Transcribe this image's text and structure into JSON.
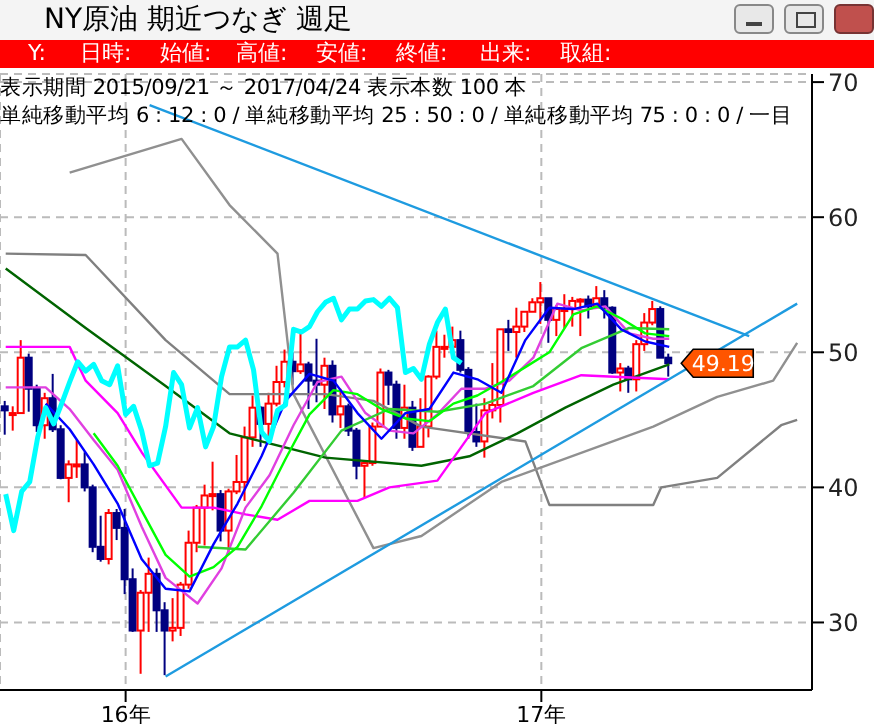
{
  "chart_data": {
    "type": "candlestick",
    "title": "NY原油 期近つなぎ 週足",
    "annotations": [
      "Y:",
      "日時:",
      "始値:",
      "高値:",
      "安値:",
      "終値:",
      "出来:",
      "取組:",
      "表示期間 2015/09/21 ～ 2017/04/24 表示本数 100 本",
      "単純移動平均 6 : 12 : 0 / 単純移動平均 25 : 50 : 0 / 単純移動平均 75 : 0 : 0 / 一目",
      {
        "text": "49.19",
        "x": "2017-04-24",
        "y": 49.19
      }
    ],
    "x": [
      "2015-09-21",
      "2015-09-28",
      "2015-10-05",
      "2015-10-12",
      "2015-10-19",
      "2015-10-26",
      "2015-11-02",
      "2015-11-09",
      "2015-11-16",
      "2015-11-23",
      "2015-11-30",
      "2015-12-07",
      "2015-12-14",
      "2015-12-21",
      "2015-12-28",
      "2016-01-04",
      "2016-01-11",
      "2016-01-18",
      "2016-01-25",
      "2016-02-01",
      "2016-02-08",
      "2016-02-15",
      "2016-02-22",
      "2016-02-29",
      "2016-03-07",
      "2016-03-14",
      "2016-03-21",
      "2016-03-28",
      "2016-04-04",
      "2016-04-11",
      "2016-04-18",
      "2016-04-25",
      "2016-05-02",
      "2016-05-09",
      "2016-05-16",
      "2016-05-23",
      "2016-05-30",
      "2016-06-06",
      "2016-06-13",
      "2016-06-20",
      "2016-06-27",
      "2016-07-04",
      "2016-07-11",
      "2016-07-18",
      "2016-07-25",
      "2016-08-01",
      "2016-08-08",
      "2016-08-15",
      "2016-08-22",
      "2016-08-29",
      "2016-09-05",
      "2016-09-12",
      "2016-09-19",
      "2016-09-26",
      "2016-10-03",
      "2016-10-10",
      "2016-10-17",
      "2016-10-24",
      "2016-10-31",
      "2016-11-07",
      "2016-11-14",
      "2016-11-21",
      "2016-11-28",
      "2016-12-05",
      "2016-12-12",
      "2016-12-19",
      "2016-12-26",
      "2017-01-02",
      "2017-01-09",
      "2017-01-16",
      "2017-01-23",
      "2017-01-30",
      "2017-02-06",
      "2017-02-13",
      "2017-02-20",
      "2017-02-27",
      "2017-03-06",
      "2017-03-13",
      "2017-03-20",
      "2017-03-27",
      "2017-04-03",
      "2017-04-10",
      "2017-04-17",
      "2017-04-24"
    ],
    "ohlc": [
      [
        46.0,
        46.4,
        43.9,
        45.7
      ],
      [
        45.5,
        46.0,
        44.2,
        45.5
      ],
      [
        45.5,
        50.9,
        45.5,
        49.6
      ],
      [
        49.6,
        49.9,
        45.6,
        47.3
      ],
      [
        47.3,
        47.6,
        44.1,
        44.6
      ],
      [
        44.6,
        47.0,
        43.6,
        46.6
      ],
      [
        46.6,
        48.4,
        44.1,
        44.3
      ],
      [
        44.3,
        44.6,
        40.6,
        40.7
      ],
      [
        40.7,
        42.0,
        38.9,
        41.7
      ],
      [
        41.7,
        43.5,
        40.7,
        41.7
      ],
      [
        41.7,
        42.6,
        39.7,
        40.0
      ],
      [
        40.0,
        40.2,
        35.2,
        35.6
      ],
      [
        35.6,
        37.9,
        34.5,
        34.7
      ],
      [
        34.7,
        38.4,
        34.3,
        38.1
      ],
      [
        38.1,
        38.4,
        36.1,
        37.0
      ],
      [
        37.0,
        38.4,
        32.1,
        33.2
      ],
      [
        33.2,
        34.0,
        29.3,
        29.4
      ],
      [
        29.4,
        32.4,
        26.2,
        32.2
      ],
      [
        32.2,
        34.8,
        29.3,
        33.6
      ],
      [
        33.6,
        34.0,
        29.3,
        30.9
      ],
      [
        30.9,
        31.5,
        26.1,
        29.4
      ],
      [
        29.4,
        31.8,
        28.6,
        29.6
      ],
      [
        29.6,
        33.0,
        29.0,
        32.8
      ],
      [
        32.8,
        36.8,
        32.5,
        35.9
      ],
      [
        35.9,
        38.7,
        35.2,
        38.5
      ],
      [
        38.5,
        40.2,
        35.7,
        39.4
      ],
      [
        39.4,
        41.9,
        38.3,
        39.5
      ],
      [
        39.5,
        39.8,
        36.0,
        36.8
      ],
      [
        36.8,
        39.9,
        35.2,
        39.7
      ],
      [
        39.7,
        42.4,
        39.5,
        40.4
      ],
      [
        40.4,
        44.5,
        39.0,
        43.7
      ],
      [
        43.7,
        46.8,
        43.0,
        45.9
      ],
      [
        45.9,
        46.0,
        43.0,
        44.7
      ],
      [
        44.7,
        47.0,
        43.5,
        46.2
      ],
      [
        46.2,
        49.0,
        46.0,
        47.8
      ],
      [
        47.8,
        50.2,
        47.4,
        49.3
      ],
      [
        49.3,
        50.0,
        47.6,
        48.6
      ],
      [
        48.6,
        51.7,
        48.4,
        49.1
      ],
      [
        49.1,
        49.3,
        45.8,
        47.9
      ],
      [
        47.9,
        51.0,
        46.3,
        47.6
      ],
      [
        47.6,
        49.6,
        45.8,
        49.0
      ],
      [
        49.0,
        49.4,
        44.8,
        45.4
      ],
      [
        45.4,
        47.3,
        44.4,
        46.0
      ],
      [
        46.0,
        46.2,
        43.8,
        44.2
      ],
      [
        44.2,
        44.4,
        40.6,
        41.6
      ],
      [
        41.6,
        42.0,
        39.2,
        41.8
      ],
      [
        41.8,
        44.8,
        41.6,
        44.5
      ],
      [
        44.5,
        48.8,
        44.5,
        48.5
      ],
      [
        48.5,
        48.7,
        46.1,
        47.6
      ],
      [
        47.6,
        47.9,
        43.6,
        44.4
      ],
      [
        44.4,
        47.6,
        43.6,
        45.9
      ],
      [
        45.9,
        46.4,
        42.7,
        43.0
      ],
      [
        43.0,
        46.6,
        43.0,
        44.5
      ],
      [
        44.5,
        48.3,
        43.7,
        48.2
      ],
      [
        48.2,
        51.6,
        48.0,
        50.4
      ],
      [
        50.4,
        51.3,
        49.6,
        50.4
      ],
      [
        50.4,
        51.9,
        49.9,
        50.9
      ],
      [
        50.9,
        51.6,
        48.5,
        48.7
      ],
      [
        48.7,
        48.9,
        43.6,
        44.1
      ],
      [
        44.1,
        46.2,
        43.0,
        43.4
      ],
      [
        43.4,
        46.6,
        42.2,
        45.7
      ],
      [
        45.7,
        49.2,
        45.1,
        46.1
      ],
      [
        46.1,
        51.7,
        44.8,
        51.7
      ],
      [
        51.7,
        52.4,
        50.1,
        51.5
      ],
      [
        51.5,
        53.3,
        49.6,
        51.9
      ],
      [
        51.9,
        53.0,
        51.5,
        53.0
      ],
      [
        53.0,
        54.0,
        53.0,
        53.7
      ],
      [
        53.7,
        55.2,
        52.1,
        54.0
      ],
      [
        54.0,
        54.0,
        50.7,
        52.4
      ],
      [
        52.4,
        53.5,
        51.2,
        53.2
      ],
      [
        53.2,
        54.3,
        51.8,
        53.2
      ],
      [
        53.2,
        54.1,
        51.9,
        53.8
      ],
      [
        53.8,
        54.0,
        51.2,
        53.9
      ],
      [
        53.9,
        54.2,
        52.5,
        53.4
      ],
      [
        53.4,
        54.9,
        53.2,
        54.0
      ],
      [
        54.0,
        54.6,
        52.5,
        53.3
      ],
      [
        53.3,
        53.4,
        48.4,
        48.5
      ],
      [
        48.5,
        49.2,
        47.1,
        48.8
      ],
      [
        48.8,
        49.0,
        47.0,
        48.0
      ],
      [
        48.0,
        50.9,
        47.1,
        50.6
      ],
      [
        50.6,
        52.9,
        50.1,
        52.2
      ],
      [
        52.2,
        53.8,
        52.0,
        53.2
      ],
      [
        53.2,
        53.4,
        49.6,
        49.6
      ],
      [
        49.6,
        49.9,
        48.2,
        49.19
      ]
    ],
    "series": [
      {
        "type": "line",
        "color": "#808080",
        "x": [
          "2015-09-21",
          "2015-11-30",
          "2016-02-08",
          "2016-04-04",
          "2016-06-27",
          "2016-08-08",
          "2016-09-19",
          "2016-12-19",
          "2017-01-09",
          "2017-04-10",
          "2017-04-17",
          "2017-06-05",
          "2017-07-31",
          "2017-08-14"
        ],
        "values": [
          57.3,
          57.2,
          50.9,
          46.9,
          46.9,
          46.4,
          44.5,
          43.4,
          38.7,
          38.7,
          40.0,
          40.7,
          44.6,
          45.0
        ]
      },
      {
        "type": "line",
        "color": "#909090",
        "x": [
          "2015-11-16",
          "2016-02-22",
          "2016-04-04",
          "2016-05-16",
          "2016-05-30",
          "2016-08-08",
          "2016-09-19",
          "2016-11-28",
          "2017-04-10",
          "2017-06-05",
          "2017-07-24",
          "2017-08-14"
        ],
        "values": [
          63.3,
          65.8,
          60.9,
          57.3,
          46.9,
          35.5,
          36.4,
          40.4,
          44.5,
          46.7,
          47.9,
          50.7
        ]
      },
      {
        "type": "line",
        "color": "#006400",
        "x": [
          "2015-09-21",
          "2015-11-30",
          "2016-02-08",
          "2016-04-04",
          "2016-06-27",
          "2016-09-19",
          "2016-10-31",
          "2016-12-12",
          "2017-01-23",
          "2017-03-06",
          "2017-04-24"
        ],
        "values": [
          56.2,
          51.8,
          47.5,
          44.0,
          42.2,
          41.6,
          42.3,
          44.0,
          45.9,
          47.6,
          49.1
        ]
      },
      {
        "type": "line",
        "color": "#ff00ff",
        "x": [
          "2015-09-21",
          "2015-11-16",
          "2015-11-30",
          "2015-12-28",
          "2016-01-18",
          "2016-02-22",
          "2016-03-21",
          "2016-04-18",
          "2016-05-16",
          "2016-06-13",
          "2016-07-25",
          "2016-08-22",
          "2016-10-03",
          "2016-11-14",
          "2016-12-26",
          "2017-02-06",
          "2017-04-24"
        ],
        "values": [
          50.4,
          50.4,
          47.9,
          45.5,
          42.6,
          38.5,
          38.5,
          38.0,
          37.6,
          39.0,
          39.0,
          40.0,
          40.5,
          45.5,
          47.0,
          48.3,
          48.0
        ]
      },
      {
        "type": "line",
        "color": "#e040e0",
        "x": [
          "2015-09-21",
          "2015-10-26",
          "2015-11-16",
          "2015-12-07",
          "2015-12-28",
          "2016-01-18",
          "2016-02-08",
          "2016-03-07",
          "2016-03-28",
          "2016-04-18",
          "2016-05-09",
          "2016-05-30",
          "2016-06-20",
          "2016-07-11",
          "2016-08-01",
          "2016-08-22",
          "2016-09-12",
          "2016-10-03",
          "2016-10-24",
          "2016-11-14",
          "2016-12-05",
          "2016-12-26",
          "2017-01-16",
          "2017-02-06",
          "2017-02-27",
          "2017-03-20",
          "2017-04-10",
          "2017-04-24"
        ],
        "values": [
          47.4,
          47.4,
          45.8,
          43.5,
          41.3,
          37.1,
          33.3,
          31.4,
          34.0,
          38.5,
          40.9,
          44.6,
          47.8,
          48.2,
          45.5,
          44.2,
          44.0,
          45.4,
          47.3,
          47.3,
          47.9,
          49.6,
          53.6,
          53.1,
          53.4,
          51.4,
          51.0,
          51.0
        ]
      },
      {
        "type": "line",
        "color": "#33cc33",
        "x": [
          "2016-03-07",
          "2016-04-18",
          "2016-05-30",
          "2016-07-11",
          "2016-08-22",
          "2016-10-03",
          "2016-11-14",
          "2016-12-26",
          "2017-02-06",
          "2017-03-20",
          "2017-04-24"
        ],
        "values": [
          35.6,
          35.4,
          39.6,
          44.2,
          45.8,
          45.6,
          46.2,
          47.5,
          50.3,
          51.8,
          51.7
        ]
      },
      {
        "type": "line",
        "color": "#00ff00",
        "x": [
          "2015-12-07",
          "2015-12-28",
          "2016-01-18",
          "2016-02-08",
          "2016-02-29",
          "2016-03-21",
          "2016-04-11",
          "2016-05-02",
          "2016-05-23",
          "2016-06-13",
          "2016-07-04",
          "2016-07-25",
          "2016-08-15",
          "2016-09-05",
          "2016-09-26",
          "2016-10-17",
          "2016-11-07",
          "2016-11-28",
          "2016-12-19",
          "2017-01-09",
          "2017-01-30",
          "2017-02-20",
          "2017-03-13",
          "2017-04-03",
          "2017-04-24"
        ],
        "values": [
          44.0,
          41.6,
          38.3,
          35.0,
          33.4,
          34.1,
          35.6,
          38.6,
          42.1,
          45.4,
          47.2,
          46.9,
          45.8,
          45.1,
          44.9,
          46.2,
          46.8,
          47.8,
          48.9,
          50.0,
          52.8,
          53.4,
          52.5,
          51.4,
          51.2
        ]
      },
      {
        "type": "line",
        "color": "#0000ff",
        "x": [
          "2015-10-26",
          "2015-11-16",
          "2015-12-07",
          "2015-12-28",
          "2016-01-18",
          "2016-02-08",
          "2016-02-29",
          "2016-03-21",
          "2016-04-11",
          "2016-05-02",
          "2016-05-23",
          "2016-06-13",
          "2016-07-04",
          "2016-07-25",
          "2016-08-15",
          "2016-09-05",
          "2016-09-26",
          "2016-10-17",
          "2016-11-07",
          "2016-11-28",
          "2016-12-19",
          "2017-01-09",
          "2017-01-30",
          "2017-02-20",
          "2017-03-13",
          "2017-04-03",
          "2017-04-24"
        ],
        "values": [
          46.2,
          44.3,
          41.7,
          38.8,
          34.7,
          32.5,
          32.3,
          35.8,
          38.8,
          42.3,
          46.4,
          48.4,
          47.9,
          45.5,
          43.6,
          45.5,
          45.8,
          48.5,
          48.0,
          47.0,
          50.9,
          53.3,
          53.2,
          53.6,
          51.7,
          50.8,
          50.4
        ]
      },
      {
        "type": "line",
        "color": "#00ffff",
        "x": [
          "2015-09-21",
          "2015-09-28",
          "2015-10-05",
          "2015-10-12",
          "2015-10-19",
          "2015-10-26",
          "2015-11-02",
          "2015-11-09",
          "2015-11-16",
          "2015-11-23",
          "2015-11-30",
          "2015-12-07",
          "2015-12-14",
          "2015-12-21",
          "2015-12-28",
          "2016-01-04",
          "2016-01-11",
          "2016-01-18",
          "2016-01-25",
          "2016-02-01",
          "2016-02-08",
          "2016-02-15",
          "2016-02-22",
          "2016-02-29",
          "2016-03-07",
          "2016-03-14",
          "2016-03-21",
          "2016-03-28",
          "2016-04-04",
          "2016-04-11",
          "2016-04-18",
          "2016-04-25",
          "2016-05-02",
          "2016-05-09",
          "2016-05-16",
          "2016-05-23",
          "2016-05-30",
          "2016-06-06",
          "2016-06-13",
          "2016-06-20",
          "2016-06-27",
          "2016-07-04",
          "2016-07-11",
          "2016-07-18",
          "2016-07-25",
          "2016-08-01",
          "2016-08-08",
          "2016-08-15",
          "2016-08-22",
          "2016-08-29",
          "2016-09-05",
          "2016-09-12",
          "2016-09-19",
          "2016-09-26",
          "2016-10-03",
          "2016-10-10",
          "2016-10-17",
          "2016-10-24"
        ],
        "values": [
          39.5,
          36.8,
          39.7,
          40.4,
          43.7,
          45.9,
          44.7,
          46.2,
          47.8,
          49.3,
          48.6,
          49.1,
          47.9,
          47.6,
          49.0,
          45.4,
          46.0,
          44.2,
          41.6,
          41.8,
          44.5,
          48.5,
          47.6,
          44.4,
          45.9,
          43.0,
          44.5,
          48.2,
          50.4,
          50.4,
          50.9,
          48.7,
          44.1,
          43.4,
          45.7,
          46.1,
          51.7,
          51.5,
          51.9,
          53.0,
          53.7,
          54.0,
          52.4,
          53.2,
          53.2,
          53.8,
          53.9,
          53.4,
          54.0,
          53.3,
          48.5,
          48.8,
          48.0,
          50.6,
          52.2,
          53.2,
          49.6,
          49.2
        ]
      },
      {
        "type": "line",
        "color": "#1e9be0",
        "x": [
          "2016-01-25",
          "2017-07-03"
        ],
        "values": [
          68.3,
          51.2
        ]
      },
      {
        "type": "line",
        "color": "#1e9be0",
        "x": [
          "2016-02-08",
          "2017-08-14"
        ],
        "values": [
          26.0,
          53.6
        ]
      }
    ],
    "xlim": [
      "2015-09-16",
      "2017-08-27"
    ],
    "xticks": [
      {
        "value": "2016-01-04",
        "label": "16年"
      },
      {
        "value": "2017-01-02",
        "label": "17年"
      }
    ],
    "ylim": [
      25,
      70.6
    ],
    "yticks": [
      30,
      40,
      50,
      60,
      70
    ],
    "grid": true
  }
}
